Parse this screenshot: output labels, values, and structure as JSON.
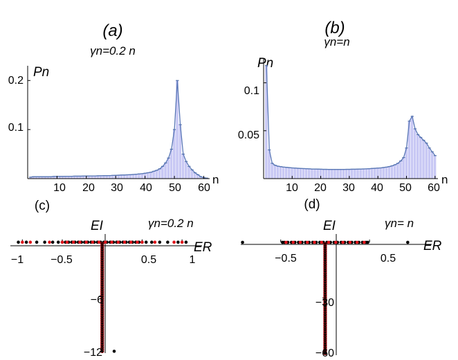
{
  "panels": [
    {
      "label": "(a)",
      "subtitle": "γn=0.2 n",
      "ylabel": "Pn",
      "xlabel": "n",
      "xticks": [
        "10",
        "20",
        "30",
        "40",
        "50",
        "60"
      ],
      "yticks": [
        "0.1",
        "0.2"
      ]
    },
    {
      "label": "(b)",
      "subtitle": "γn=n",
      "ylabel": "Pn",
      "xlabel": "n",
      "xticks": [
        "10",
        "20",
        "30",
        "40",
        "50",
        "60"
      ],
      "yticks": [
        "0.05",
        "0.1"
      ]
    },
    {
      "label": "(c)",
      "annotation": "γn=0.2 n",
      "xlabel": "ER",
      "ylabel": "EI",
      "xticks": [
        "−1",
        "−0.5",
        "0.5",
        "1"
      ],
      "yticks": [
        "−6",
        "−12"
      ]
    },
    {
      "label": "(d)",
      "annotation": "γn= n",
      "xlabel": "ER",
      "ylabel": "EI",
      "xticks": [
        "−0.5",
        "0.5"
      ],
      "yticks": [
        "−30",
        "−60"
      ]
    }
  ],
  "colors": {
    "bar_fill": "#c8c8f4",
    "bar_edge": "#4f6ea8",
    "envelope": "#5a78b6",
    "dot_black": "#000000",
    "dot_red": "#e0141b"
  },
  "chart_data": [
    {
      "type": "bar",
      "x": [
        1,
        2,
        3,
        4,
        5,
        6,
        7,
        8,
        9,
        10,
        11,
        12,
        13,
        14,
        15,
        16,
        17,
        18,
        19,
        20,
        21,
        22,
        23,
        24,
        25,
        26,
        27,
        28,
        29,
        30,
        31,
        32,
        33,
        34,
        35,
        36,
        37,
        38,
        39,
        40,
        41,
        42,
        43,
        44,
        45,
        46,
        47,
        48,
        49,
        50,
        51,
        52,
        53,
        54,
        55,
        56,
        57,
        58,
        59,
        60,
        61
      ],
      "values": [
        0.003,
        0.004,
        0.004,
        0.004,
        0.004,
        0.004,
        0.004,
        0.004,
        0.0045,
        0.0045,
        0.0045,
        0.0045,
        0.0048,
        0.0048,
        0.0048,
        0.005,
        0.005,
        0.005,
        0.0052,
        0.0052,
        0.0055,
        0.0055,
        0.0055,
        0.0057,
        0.0058,
        0.006,
        0.006,
        0.0062,
        0.0065,
        0.0067,
        0.007,
        0.0073,
        0.0075,
        0.0078,
        0.008,
        0.0085,
        0.009,
        0.0095,
        0.01,
        0.011,
        0.012,
        0.013,
        0.015,
        0.017,
        0.02,
        0.025,
        0.032,
        0.042,
        0.06,
        0.1,
        0.2,
        0.11,
        0.05,
        0.035,
        0.025,
        0.018,
        0.012,
        0.008,
        0.004,
        0.002,
        0.001
      ],
      "xlim": [
        0,
        62
      ],
      "ylim": [
        0,
        0.23
      ],
      "xlabel": "n",
      "ylabel": "Pn"
    },
    {
      "type": "bar",
      "x": [
        1,
        2,
        3,
        4,
        5,
        6,
        7,
        8,
        9,
        10,
        11,
        12,
        13,
        14,
        15,
        16,
        17,
        18,
        19,
        20,
        21,
        22,
        23,
        24,
        25,
        26,
        27,
        28,
        29,
        30,
        31,
        32,
        33,
        34,
        35,
        36,
        37,
        38,
        39,
        40,
        41,
        42,
        43,
        44,
        45,
        46,
        47,
        48,
        49,
        50,
        51,
        52,
        53,
        54,
        55,
        56,
        57,
        58,
        59,
        60
      ],
      "values": [
        0.118,
        0.03,
        0.016,
        0.014,
        0.013,
        0.0125,
        0.012,
        0.0118,
        0.0115,
        0.0112,
        0.011,
        0.0108,
        0.0106,
        0.0105,
        0.0104,
        0.0102,
        0.01,
        0.01,
        0.0099,
        0.0098,
        0.0097,
        0.0097,
        0.0096,
        0.0096,
        0.0096,
        0.0096,
        0.0096,
        0.0096,
        0.0097,
        0.0097,
        0.0098,
        0.0098,
        0.0099,
        0.01,
        0.0101,
        0.0102,
        0.0104,
        0.0106,
        0.0108,
        0.011,
        0.0112,
        0.0116,
        0.012,
        0.0126,
        0.0134,
        0.0145,
        0.016,
        0.0185,
        0.022,
        0.032,
        0.06,
        0.065,
        0.052,
        0.046,
        0.043,
        0.04,
        0.037,
        0.032,
        0.028,
        0.024
      ],
      "xlim": [
        0,
        61
      ],
      "ylim": [
        0,
        0.125
      ],
      "xlabel": "n",
      "ylabel": "Pn"
    },
    {
      "type": "scatter",
      "series": [
        {
          "x": [
            -1.05,
            -0.95,
            -0.82,
            -0.72,
            -0.62,
            -0.55,
            -0.5,
            -0.46,
            -0.42,
            -0.38,
            -0.34,
            -0.3,
            -0.26,
            -0.22,
            -0.18,
            -0.14,
            -0.1,
            -0.06,
            -0.02,
            0.02,
            0.06,
            0.1,
            0.14,
            0.18,
            0.22,
            0.26,
            0.3,
            0.34,
            0.38,
            0.42,
            0.46,
            0.5,
            0.55,
            0.62,
            0.72,
            0.82,
            0.95,
            1.05
          ],
          "y": [
            0,
            0,
            0,
            0,
            0,
            0,
            0,
            0,
            0,
            0,
            0,
            0,
            0,
            0,
            0,
            0,
            0,
            0,
            0,
            0,
            0,
            0,
            0,
            0,
            0,
            0,
            0,
            0,
            0,
            0,
            0,
            0,
            0,
            0,
            0,
            0,
            0,
            0
          ]
        },
        {
          "x": [
            -1,
            -0.9,
            -0.66,
            -0.5,
            -0.44,
            -0.36,
            -0.28,
            -0.2,
            -0.12,
            -0.04,
            0.04,
            0.12,
            0.2,
            0.28,
            0.36,
            0.44,
            0.5,
            0.66,
            0.9,
            1
          ],
          "y": [
            0,
            0,
            0,
            0,
            0,
            0,
            0,
            0,
            0,
            0,
            0,
            0,
            0,
            0,
            0,
            0,
            0,
            0,
            0,
            0
          ]
        },
        {
          "x": [
            0,
            0,
            0,
            0,
            0,
            0,
            0,
            0,
            0,
            0,
            0,
            0,
            0,
            0,
            0,
            0,
            0,
            0,
            0,
            0,
            0,
            0,
            0,
            0,
            0,
            0,
            0,
            0,
            0,
            0,
            0,
            0,
            0,
            0,
            0,
            0,
            0,
            0,
            0,
            0,
            0,
            0,
            0,
            0,
            0,
            0,
            0,
            0,
            0,
            0,
            0,
            0,
            0,
            0,
            0,
            0,
            0,
            0,
            0,
            0
          ],
          "y": [
            -0.2,
            -0.4,
            -0.6,
            -0.8,
            -1.0,
            -1.2,
            -1.4,
            -1.6,
            -1.8,
            -2.0,
            -2.2,
            -2.4,
            -2.6,
            -2.8,
            -3.0,
            -3.2,
            -3.4,
            -3.6,
            -3.8,
            -4.0,
            -4.2,
            -4.4,
            -4.6,
            -4.8,
            -5.0,
            -5.2,
            -5.4,
            -5.6,
            -5.8,
            -6.0,
            -6.2,
            -6.4,
            -6.6,
            -6.8,
            -7.0,
            -7.2,
            -7.4,
            -7.6,
            -7.8,
            -8.0,
            -8.2,
            -8.4,
            -8.6,
            -8.8,
            -9.0,
            -9.2,
            -9.4,
            -9.6,
            -9.8,
            -10.0,
            -10.2,
            -10.4,
            -10.6,
            -10.8,
            -11.0,
            -11.2,
            -11.4,
            -11.6,
            -11.8,
            -12.0
          ]
        },
        {
          "x": [
            0.15
          ],
          "y": [
            -12.0
          ]
        }
      ],
      "xlim": [
        -1.15,
        1.25
      ],
      "ylim": [
        -12.2,
        0.9
      ],
      "xlabel": "ER",
      "ylabel": "EI"
    },
    {
      "type": "scatter",
      "series": [
        {
          "x": [
            -0.93,
            -0.48,
            -0.46,
            -0.42,
            -0.38,
            -0.34,
            -0.3,
            -0.26,
            -0.22,
            -0.18,
            -0.14,
            -0.1,
            -0.06,
            -0.02,
            0.02,
            0.06,
            0.1,
            0.14,
            0.18,
            0.22,
            0.26,
            0.3,
            0.34,
            0.38,
            0.42,
            0.46,
            0.48,
            0.93
          ],
          "y": [
            0,
            0,
            0,
            0,
            0,
            0,
            0,
            0,
            0,
            0,
            0,
            0,
            0,
            0,
            0,
            0,
            0,
            0,
            0,
            0,
            0,
            0,
            0,
            0,
            0,
            0,
            0,
            0
          ]
        },
        {
          "x": [
            -0.44,
            -0.36,
            -0.28,
            -0.2,
            -0.12,
            -0.04,
            0.04,
            0.12,
            0.2,
            0.28,
            0.36,
            0.44
          ],
          "y": [
            0,
            0,
            0,
            0,
            0,
            0,
            0,
            0,
            0,
            0,
            0,
            0
          ]
        },
        {
          "x": [
            0,
            0,
            0,
            0,
            0,
            0,
            0,
            0,
            0,
            0,
            0,
            0,
            0,
            0,
            0,
            0,
            0,
            0,
            0,
            0,
            0,
            0,
            0,
            0,
            0,
            0,
            0,
            0,
            0,
            0,
            0,
            0,
            0,
            0,
            0,
            0,
            0,
            0,
            0,
            0,
            0,
            0,
            0,
            0,
            0,
            0,
            0,
            0,
            0,
            0,
            0,
            0,
            0,
            0,
            0,
            0,
            0,
            0,
            0,
            0
          ],
          "y": [
            -1,
            -2,
            -3,
            -4,
            -5,
            -6,
            -7,
            -8,
            -9,
            -10,
            -11,
            -12,
            -13,
            -14,
            -15,
            -16,
            -17,
            -18,
            -19,
            -20,
            -21,
            -22,
            -23,
            -24,
            -25,
            -26,
            -27,
            -28,
            -29,
            -30,
            -31,
            -32,
            -33,
            -34,
            -35,
            -36,
            -37,
            -38,
            -39,
            -40,
            -41,
            -42,
            -43,
            -44,
            -45,
            -46,
            -47,
            -48,
            -49,
            -50,
            -51,
            -52,
            -53,
            -54,
            -55,
            -56,
            -57,
            -58,
            -59,
            -60
          ]
        }
      ],
      "xlim": [
        -0.95,
        1.2
      ],
      "ylim": [
        -61,
        4.5
      ],
      "xlabel": "ER",
      "ylabel": "EI"
    }
  ]
}
